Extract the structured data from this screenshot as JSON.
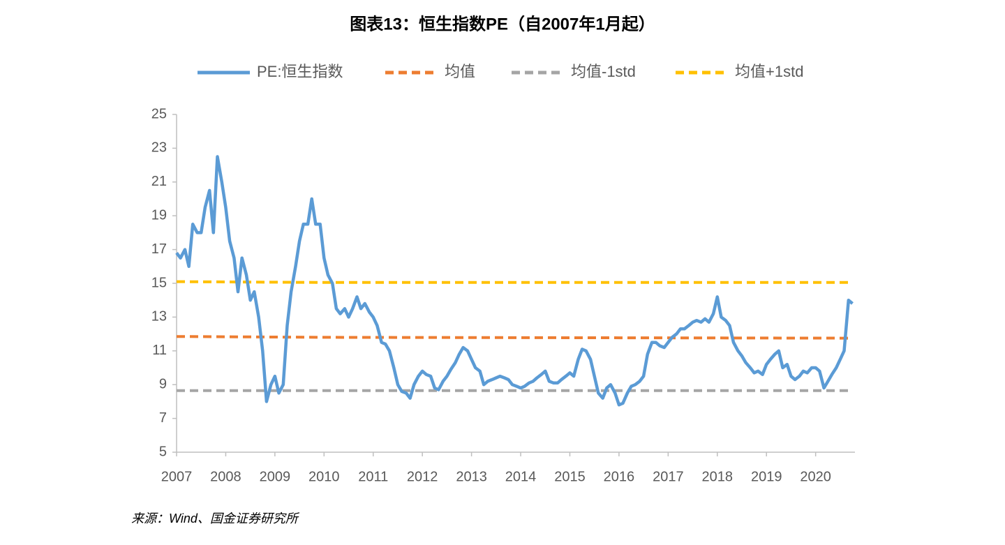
{
  "chart_data": {
    "type": "line",
    "title": "图表13：恒生指数PE（自2007年1月起）",
    "source": "来源：Wind、国金证券研究所",
    "xlim": [
      2007,
      2020.8
    ],
    "xticks": [
      2007,
      2008,
      2009,
      2010,
      2011,
      2012,
      2013,
      2014,
      2015,
      2016,
      2017,
      2018,
      2019,
      2020
    ],
    "ylim": [
      5,
      25
    ],
    "yticks": [
      5,
      7,
      9,
      11,
      13,
      15,
      17,
      19,
      21,
      23,
      25
    ],
    "grid": false,
    "legend": "top",
    "series": [
      {
        "name": "PE:恒生指数",
        "color": "#5b9bd5",
        "dash": false,
        "x": [
          2007,
          2007.08,
          2007.17,
          2007.25,
          2007.33,
          2007.42,
          2007.5,
          2007.58,
          2007.67,
          2007.75,
          2007.83,
          2007.92,
          2008,
          2008.08,
          2008.17,
          2008.25,
          2008.33,
          2008.42,
          2008.5,
          2008.58,
          2008.67,
          2008.75,
          2008.83,
          2008.92,
          2009,
          2009.08,
          2009.17,
          2009.25,
          2009.33,
          2009.42,
          2009.5,
          2009.58,
          2009.67,
          2009.75,
          2009.83,
          2009.92,
          2010,
          2010.08,
          2010.17,
          2010.25,
          2010.33,
          2010.42,
          2010.5,
          2010.58,
          2010.67,
          2010.75,
          2010.83,
          2010.92,
          2011,
          2011.08,
          2011.17,
          2011.25,
          2011.33,
          2011.42,
          2011.5,
          2011.58,
          2011.67,
          2011.75,
          2011.83,
          2011.92,
          2012,
          2012.08,
          2012.17,
          2012.25,
          2012.33,
          2012.42,
          2012.5,
          2012.58,
          2012.67,
          2012.75,
          2012.83,
          2012.92,
          2013,
          2013.08,
          2013.17,
          2013.25,
          2013.33,
          2013.42,
          2013.5,
          2013.58,
          2013.67,
          2013.75,
          2013.83,
          2013.92,
          2014,
          2014.08,
          2014.17,
          2014.25,
          2014.33,
          2014.42,
          2014.5,
          2014.58,
          2014.67,
          2014.75,
          2014.83,
          2014.92,
          2015,
          2015.08,
          2015.17,
          2015.25,
          2015.33,
          2015.42,
          2015.5,
          2015.58,
          2015.67,
          2015.75,
          2015.83,
          2015.92,
          2016,
          2016.08,
          2016.17,
          2016.25,
          2016.33,
          2016.42,
          2016.5,
          2016.58,
          2016.67,
          2016.75,
          2016.83,
          2016.92,
          2017,
          2017.08,
          2017.17,
          2017.25,
          2017.33,
          2017.42,
          2017.5,
          2017.58,
          2017.67,
          2017.75,
          2017.83,
          2017.92,
          2018,
          2018.08,
          2018.17,
          2018.25,
          2018.33,
          2018.42,
          2018.5,
          2018.58,
          2018.67,
          2018.75,
          2018.83,
          2018.92,
          2019,
          2019.08,
          2019.17,
          2019.25,
          2019.33,
          2019.42,
          2019.5,
          2019.58,
          2019.67,
          2019.75,
          2019.83,
          2019.92,
          2020,
          2020.08,
          2020.17,
          2020.25,
          2020.33,
          2020.42,
          2020.5,
          2020.58,
          2020.67,
          2020.75
        ],
        "values": [
          16.8,
          16.5,
          17,
          16,
          18.5,
          18,
          18,
          19.5,
          20.5,
          18,
          22.5,
          21,
          19.5,
          17.5,
          16.5,
          14.5,
          16.5,
          15.5,
          14,
          14.5,
          13,
          11,
          8,
          9,
          9.5,
          8.5,
          9,
          12.5,
          14.5,
          16,
          17.5,
          18.5,
          18.5,
          20,
          18.5,
          18.5,
          16.5,
          15.5,
          15,
          13.5,
          13.2,
          13.5,
          13,
          13.5,
          14.2,
          13.5,
          13.8,
          13.3,
          13,
          12.5,
          11.5,
          11.4,
          11,
          10,
          9,
          8.6,
          8.5,
          8.2,
          9,
          9.5,
          9.8,
          9.6,
          9.5,
          8.8,
          8.7,
          9.2,
          9.5,
          9.9,
          10.3,
          10.8,
          11.2,
          11,
          10.5,
          10,
          9.8,
          9,
          9.2,
          9.3,
          9.4,
          9.5,
          9.4,
          9.3,
          9,
          8.9,
          8.8,
          8.9,
          9.1,
          9.2,
          9.4,
          9.6,
          9.8,
          9.2,
          9.1,
          9.1,
          9.3,
          9.5,
          9.7,
          9.5,
          10.5,
          11.1,
          11,
          10.5,
          9.5,
          8.5,
          8.2,
          8.8,
          9,
          8.5,
          7.8,
          7.9,
          8.5,
          8.9,
          9,
          9.2,
          9.5,
          10.8,
          11.5,
          11.5,
          11.3,
          11.2,
          11.5,
          11.8,
          12,
          12.3,
          12.3,
          12.5,
          12.7,
          12.8,
          12.7,
          12.9,
          12.7,
          13.2,
          14.2,
          13,
          12.8,
          12.5,
          11.5,
          11,
          10.7,
          10.3,
          10,
          9.7,
          9.8,
          9.6,
          10.2,
          10.5,
          10.8,
          11,
          10,
          10.2,
          9.5,
          9.3,
          9.5,
          9.8,
          9.7,
          10,
          10,
          9.8,
          8.8,
          9.2,
          9.6,
          10,
          10.5,
          11,
          14,
          13.8
        ]
      },
      {
        "name": "均值",
        "color": "#ed7d31",
        "dash": true,
        "x": [
          2007,
          2010,
          2020.75
        ],
        "values": [
          11.85,
          11.8,
          11.75
        ]
      },
      {
        "name": "均值-1std",
        "color": "#a5a5a5",
        "dash": true,
        "x": [
          2007,
          2020.75
        ],
        "values": [
          8.65,
          8.65
        ]
      },
      {
        "name": "均值+1std",
        "color": "#ffc000",
        "dash": true,
        "x": [
          2007,
          2010,
          2020.75
        ],
        "values": [
          15.1,
          15.05,
          15.05
        ]
      }
    ]
  }
}
